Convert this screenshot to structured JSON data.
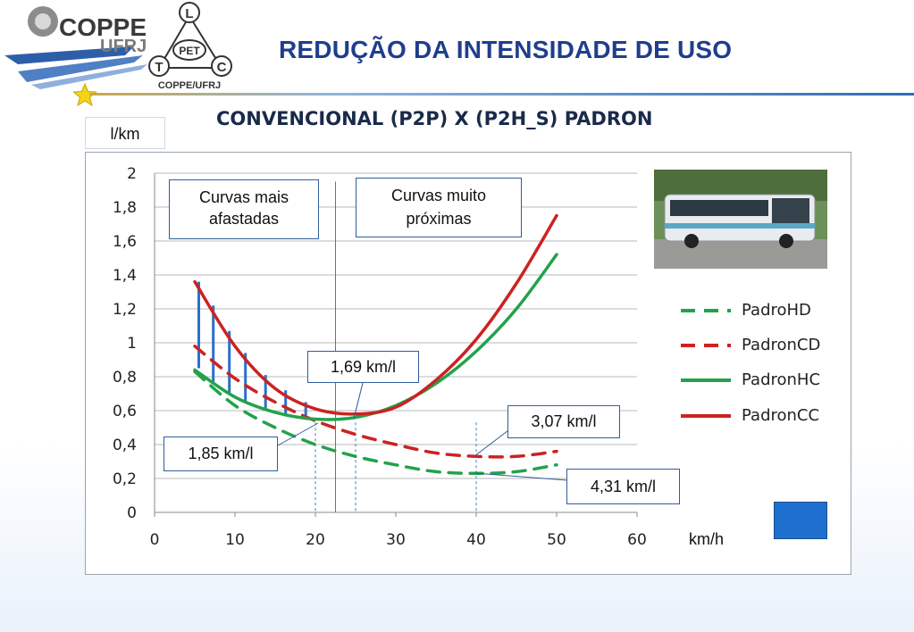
{
  "header": {
    "title": "REDUÇÃO DA INTENSIDADE DE USO",
    "subtitle": "CONVENCIONAL (P2P)  X (P2H_S) PADRON",
    "logo_coppe": "COPPE",
    "logo_ufrj": "UFRJ",
    "logo_pet": "PET",
    "logo_letters": [
      "L",
      "T",
      "C"
    ],
    "logo_caption": "COPPE/UFRJ"
  },
  "colors": {
    "title": "#1f3e8c",
    "green": "#22a24a",
    "red": "#cc2222",
    "vbar": "#2a70c8",
    "callout_border": "#2f5d9a"
  },
  "icons": [
    "coppe-logo-icon",
    "pet-triangle-logo-icon",
    "star-icon",
    "bus-photo",
    "blue-square"
  ],
  "chart_data": {
    "type": "line",
    "ylabel": "l/km",
    "xlabel": "km/h",
    "xlim": [
      0,
      60
    ],
    "ylim": [
      0,
      2
    ],
    "x_ticks": [
      "0",
      "10",
      "20",
      "30",
      "40",
      "50",
      "60"
    ],
    "y_ticks": [
      "0",
      "0,2",
      "0,4",
      "0,6",
      "0,8",
      "1",
      "1,2",
      "1,4",
      "1,6",
      "1,8",
      "2"
    ],
    "grid": "horizontal",
    "legend_position": "right",
    "series": [
      {
        "name": "PadroHD",
        "style": "dashed",
        "color": "#22a24a",
        "x": [
          5,
          10,
          15,
          20,
          25,
          30,
          35,
          40,
          45,
          50
        ],
        "y": [
          0.83,
          0.63,
          0.5,
          0.4,
          0.33,
          0.28,
          0.24,
          0.23,
          0.24,
          0.28
        ]
      },
      {
        "name": "PadronCD",
        "style": "dashed",
        "color": "#cc2222",
        "x": [
          5,
          10,
          15,
          20,
          25,
          30,
          35,
          40,
          45,
          50
        ],
        "y": [
          0.98,
          0.79,
          0.65,
          0.54,
          0.46,
          0.4,
          0.35,
          0.33,
          0.33,
          0.36
        ]
      },
      {
        "name": "PadronHC",
        "style": "solid",
        "color": "#22a24a",
        "x": [
          5,
          10,
          15,
          20,
          25,
          30,
          35,
          40,
          45,
          50
        ],
        "y": [
          0.84,
          0.68,
          0.59,
          0.55,
          0.56,
          0.63,
          0.76,
          0.95,
          1.2,
          1.52
        ]
      },
      {
        "name": "PadronCC",
        "style": "solid",
        "color": "#cc2222",
        "x": [
          5,
          10,
          15,
          20,
          25,
          30,
          35,
          40,
          45,
          50
        ],
        "y": [
          1.36,
          0.98,
          0.73,
          0.61,
          0.58,
          0.62,
          0.78,
          1.02,
          1.35,
          1.75
        ]
      }
    ],
    "gap_bars": {
      "x": [
        5.5,
        7.3,
        9.3,
        11.3,
        13.8,
        16.3,
        18.8
      ],
      "y_top": [
        1.36,
        1.22,
        1.07,
        0.94,
        0.81,
        0.72,
        0.65
      ],
      "y_bottom": [
        0.85,
        0.77,
        0.7,
        0.65,
        0.6,
        0.57,
        0.56
      ]
    },
    "reference_lines": {
      "solid_x": [
        22.5
      ],
      "dotted_x": [
        20,
        25,
        40
      ]
    },
    "annotations": [
      {
        "text": "Curvas mais afastadas",
        "lines": [
          "Curvas mais",
          "afastadas"
        ]
      },
      {
        "text": "Curvas muito próximas",
        "lines": [
          "Curvas muito",
          "próximas"
        ]
      },
      {
        "text": "1,69 km/l"
      },
      {
        "text": "1,85 km/l"
      },
      {
        "text": "3,07 km/l"
      },
      {
        "text": "4,31 km/l"
      }
    ]
  }
}
